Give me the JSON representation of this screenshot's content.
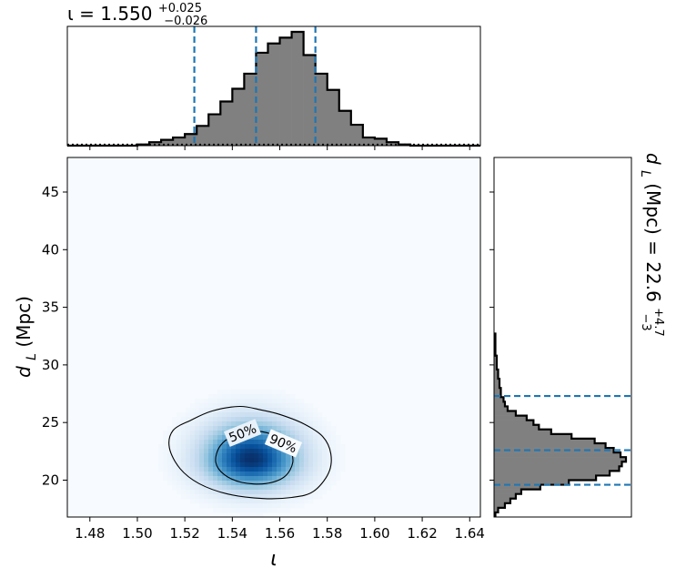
{
  "chart_data": [
    {
      "type": "histogram",
      "panel": "top-marginal",
      "title": {
        "prefix": "ι = 1.550",
        "sup": "+0.025",
        "sub": "−0.026"
      },
      "xlim": [
        1.4705,
        1.6445
      ],
      "bin_edges": [
        1.4705,
        1.475,
        1.48,
        1.485,
        1.49,
        1.495,
        1.5,
        1.505,
        1.51,
        1.515,
        1.52,
        1.525,
        1.53,
        1.535,
        1.54,
        1.545,
        1.55,
        1.555,
        1.56,
        1.565,
        1.57,
        1.575,
        1.58,
        1.585,
        1.59,
        1.595,
        1.6,
        1.605,
        1.61,
        1.615,
        1.62,
        1.625,
        1.63,
        1.635,
        1.64,
        1.6445
      ],
      "counts": [
        0,
        0,
        0,
        0,
        0,
        0,
        0.01,
        0.03,
        0.05,
        0.07,
        0.1,
        0.17,
        0.27,
        0.38,
        0.49,
        0.62,
        0.8,
        0.88,
        0.93,
        0.98,
        0.78,
        0.62,
        0.48,
        0.3,
        0.18,
        0.07,
        0.06,
        0.03,
        0.01,
        0,
        0,
        0,
        0,
        0,
        0
      ],
      "quantiles": [
        1.524,
        1.55,
        1.575
      ],
      "prior_level": 0.0
    },
    {
      "type": "heatmap",
      "panel": "joint",
      "xlabel": "ι",
      "ylabel": {
        "base": "d",
        "sub": "L",
        "rest": " (Mpc)"
      },
      "xlim": [
        1.4705,
        1.6445
      ],
      "ylim": [
        16.8,
        48
      ],
      "xticks": [
        "1.48",
        "1.50",
        "1.52",
        "1.54",
        "1.56",
        "1.58",
        "1.60",
        "1.62",
        "1.64"
      ],
      "xtick_values": [
        1.48,
        1.5,
        1.52,
        1.54,
        1.56,
        1.58,
        1.6,
        1.62,
        1.64
      ],
      "yticks": [
        "20",
        "25",
        "30",
        "35",
        "40",
        "45"
      ],
      "ytick_values": [
        20,
        25,
        30,
        35,
        40,
        45
      ],
      "peak": {
        "x": 1.548,
        "y": 21.8
      },
      "spread": {
        "x": 0.014,
        "y": 1.9
      },
      "contour_labels": [
        "90%",
        "50%"
      ],
      "contour_label_positions": [
        {
          "x": 1.5615,
          "y": 23.2
        },
        {
          "x": 1.5443,
          "y": 24.1
        }
      ],
      "contour_90": [
        [
          1.5225,
          25.2
        ],
        [
          1.5315,
          26.0
        ],
        [
          1.543,
          26.4
        ],
        [
          1.552,
          26.1
        ],
        [
          1.56,
          25.7
        ],
        [
          1.57,
          24.9
        ],
        [
          1.578,
          23.8
        ],
        [
          1.5815,
          22.3
        ],
        [
          1.5805,
          20.6
        ],
        [
          1.574,
          19.0
        ],
        [
          1.565,
          18.5
        ],
        [
          1.553,
          18.4
        ],
        [
          1.538,
          18.8
        ],
        [
          1.526,
          19.7
        ],
        [
          1.518,
          21.0
        ],
        [
          1.5135,
          22.8
        ],
        [
          1.515,
          24.3
        ]
      ],
      "contour_50": [
        [
          1.535,
          23.0
        ],
        [
          1.5415,
          23.95
        ],
        [
          1.5505,
          24.25
        ],
        [
          1.5585,
          23.8
        ],
        [
          1.5635,
          23.0
        ],
        [
          1.5655,
          21.6
        ],
        [
          1.562,
          20.3
        ],
        [
          1.554,
          19.7
        ],
        [
          1.544,
          19.8
        ],
        [
          1.5365,
          20.5
        ],
        [
          1.533,
          21.6
        ]
      ]
    },
    {
      "type": "histogram",
      "panel": "right-marginal",
      "orientation": "horizontal",
      "title": {
        "prefix": "d",
        "sub": "L",
        "rest": " (Mpc) = 22.6",
        "sup": "+4.7",
        "sub2": "−3"
      },
      "ylim": [
        16.8,
        48
      ],
      "bin_edges": [
        16.8,
        17.2,
        17.6,
        18.0,
        18.4,
        18.8,
        19.2,
        19.6,
        20.0,
        20.4,
        20.8,
        21.2,
        21.6,
        22.0,
        22.4,
        22.8,
        23.2,
        23.6,
        24.0,
        24.4,
        24.8,
        25.2,
        25.6,
        26.0,
        26.4,
        26.8,
        27.2,
        27.6,
        28.0,
        28.4,
        28.8,
        29.2,
        29.6,
        30.0,
        30.4,
        30.8,
        31.2,
        31.6,
        32.0,
        32.4,
        32.8
      ],
      "counts": [
        0.01,
        0.03,
        0.08,
        0.12,
        0.16,
        0.2,
        0.34,
        0.55,
        0.75,
        0.85,
        0.92,
        0.94,
        0.97,
        0.93,
        0.88,
        0.82,
        0.74,
        0.57,
        0.42,
        0.33,
        0.29,
        0.24,
        0.16,
        0.1,
        0.08,
        0.07,
        0.05,
        0.05,
        0.04,
        0.04,
        0.03,
        0.03,
        0.02,
        0.02,
        0.02,
        0.01,
        0.01,
        0.01,
        0.01,
        0.01
      ],
      "quantiles": [
        19.6,
        22.6,
        27.3
      ]
    }
  ]
}
